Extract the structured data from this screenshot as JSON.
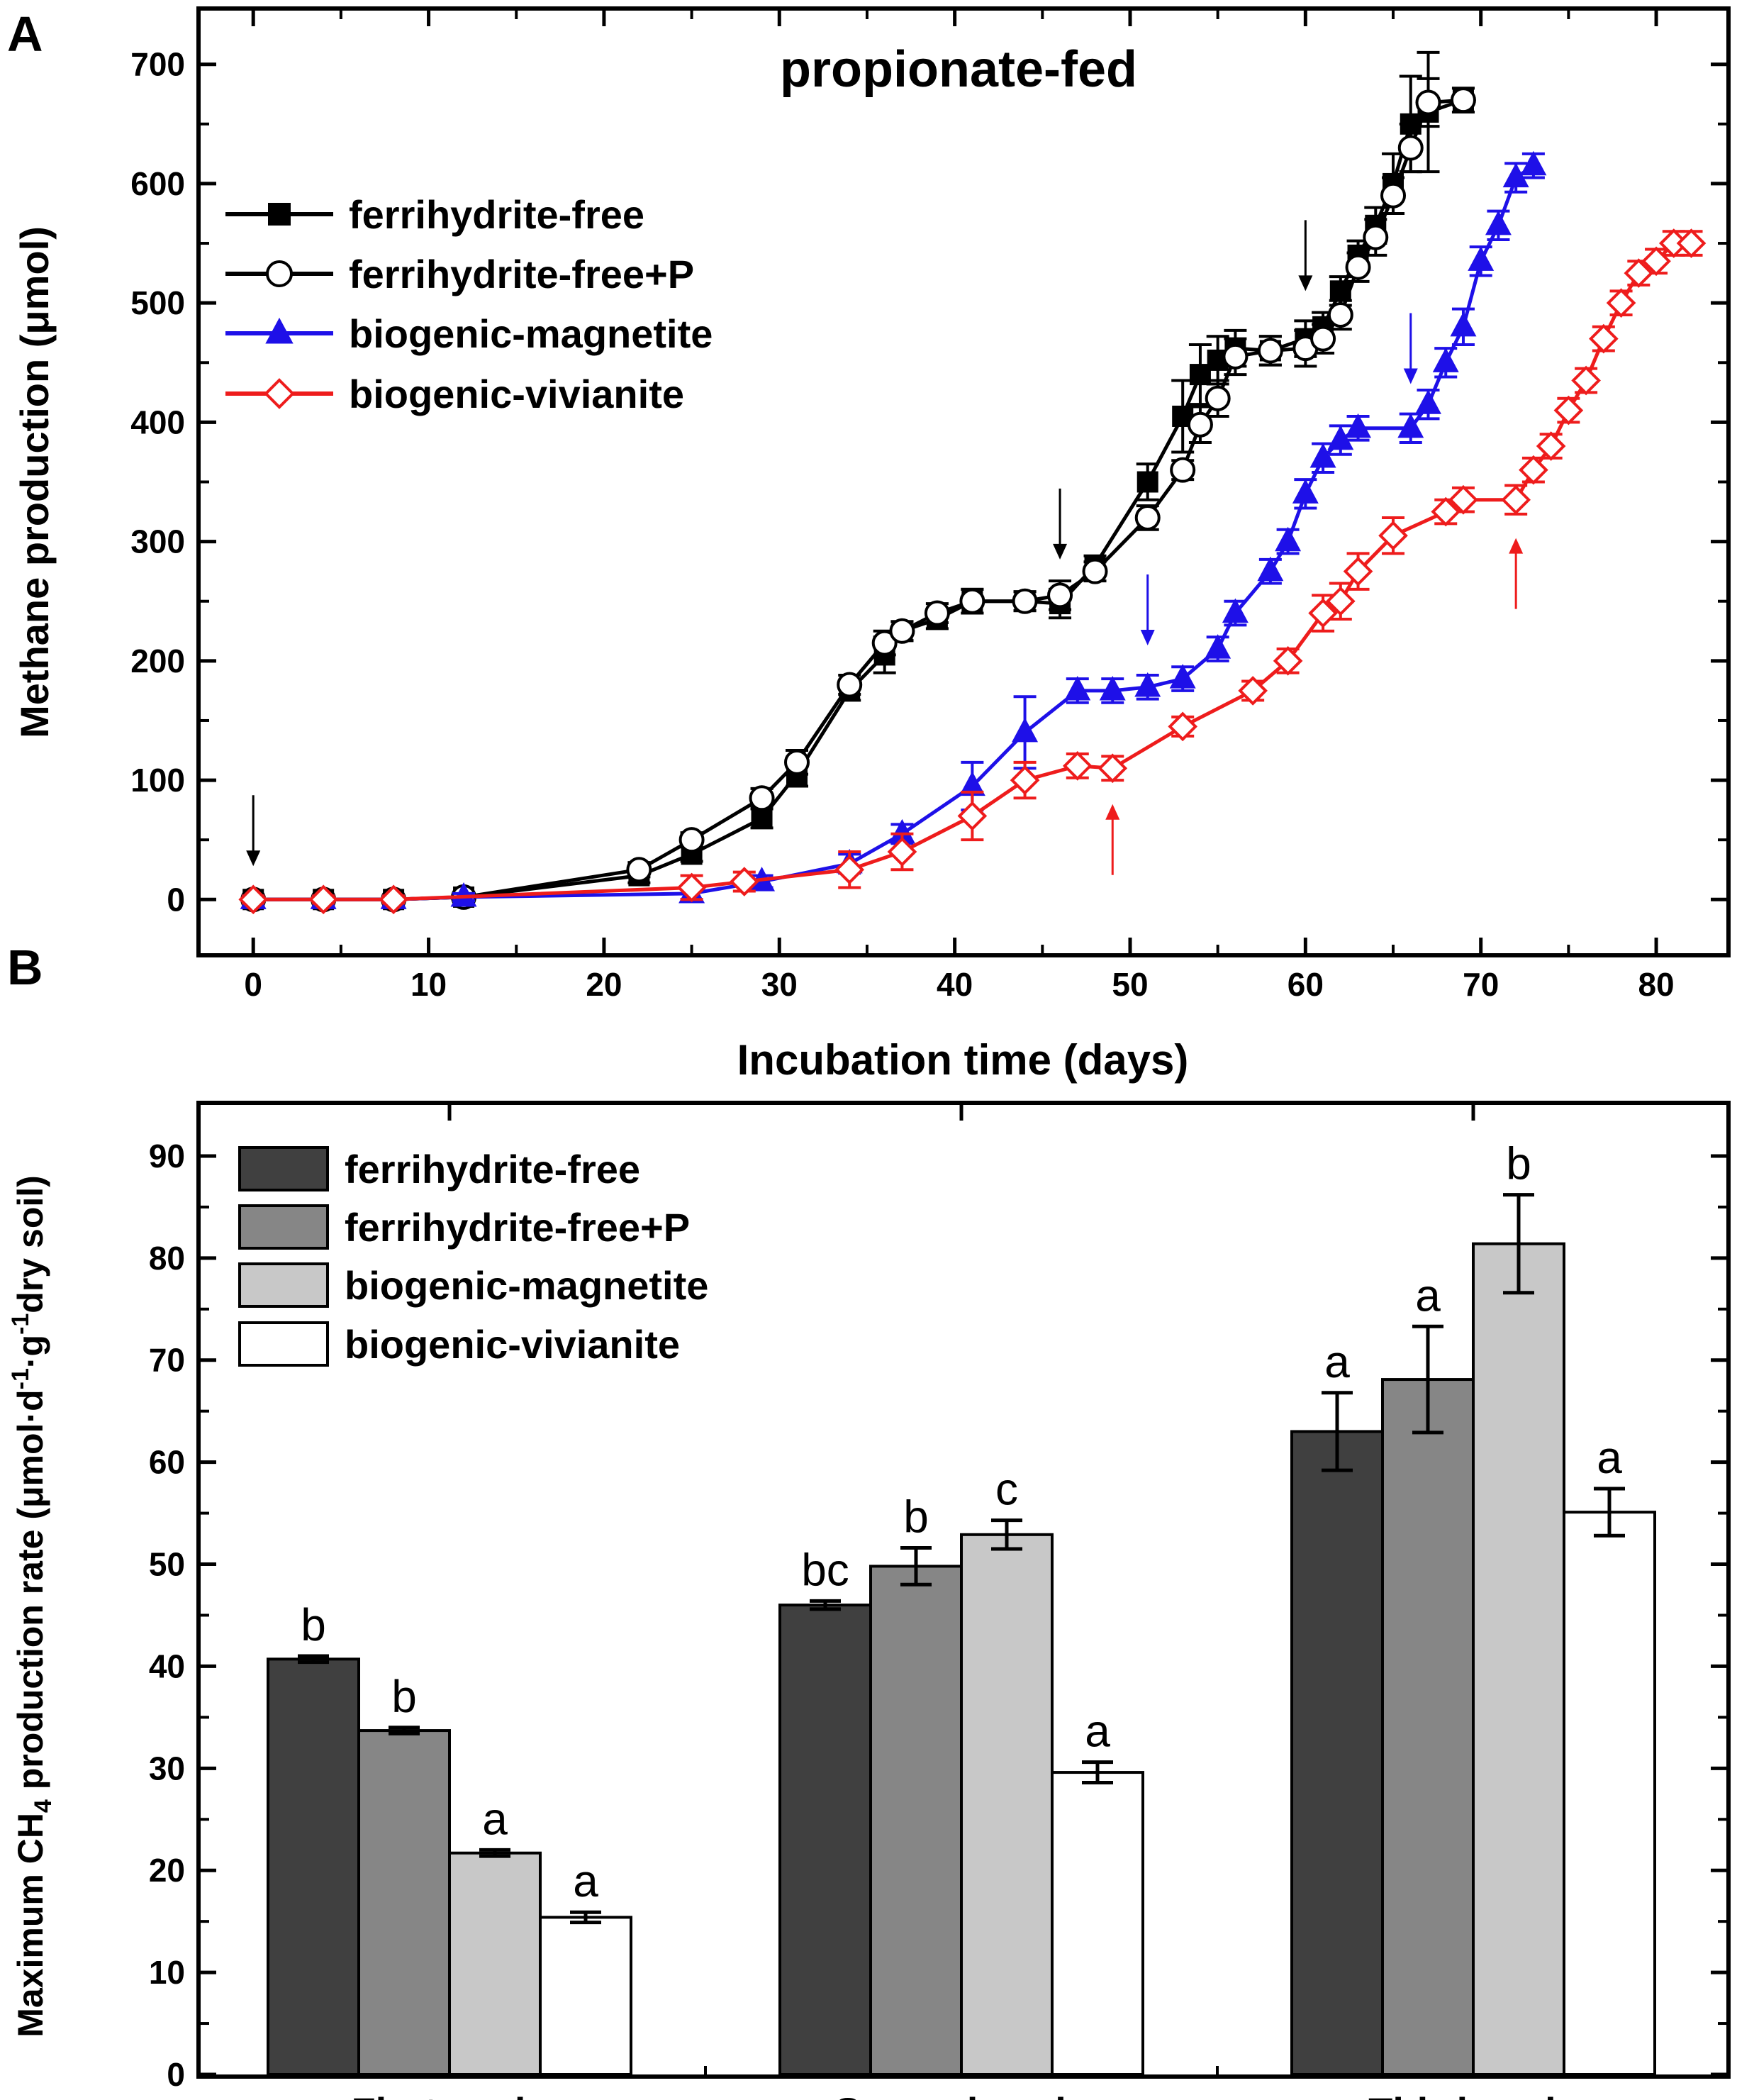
{
  "panel_a": {
    "label": "A",
    "chart_data": {
      "type": "line",
      "title": "propionate-fed",
      "xlabel": "Incubation time (days)",
      "ylabel": "Methane production (μmol)",
      "xlim": [
        -3,
        84
      ],
      "ylim": [
        -45,
        745
      ],
      "xticks": [
        "0",
        "10",
        "20",
        "30",
        "40",
        "50",
        "60",
        "70",
        "80"
      ],
      "yticks": [
        "0",
        "100",
        "200",
        "300",
        "400",
        "500",
        "600",
        "700"
      ],
      "legend_position": "upper-left",
      "series": [
        {
          "name": "ferrihydrite-free",
          "color": "#000000",
          "marker": "square-filled",
          "x": [
            0,
            4,
            8,
            12,
            22,
            25,
            29,
            31,
            34,
            36,
            37,
            39,
            41,
            44,
            46,
            48,
            51,
            53,
            54,
            55,
            56,
            58,
            60,
            61,
            62,
            63,
            64,
            65,
            66,
            67,
            69
          ],
          "y": [
            0,
            0,
            0,
            2,
            20,
            38,
            68,
            105,
            175,
            205,
            225,
            235,
            250,
            250,
            248,
            280,
            350,
            405,
            440,
            452,
            462,
            460,
            470,
            480,
            510,
            540,
            565,
            600,
            650,
            660,
            670
          ],
          "err": [
            3,
            3,
            3,
            3,
            6,
            6,
            8,
            10,
            8,
            15,
            8,
            8,
            10,
            8,
            12,
            8,
            15,
            30,
            25,
            20,
            15,
            12,
            15,
            12,
            12,
            12,
            15,
            25,
            40,
            50,
            10
          ]
        },
        {
          "name": "ferrihydrite-free+P",
          "color": "#000000",
          "marker": "circle-open",
          "x": [
            0,
            4,
            8,
            12,
            22,
            25,
            29,
            31,
            34,
            36,
            37,
            39,
            41,
            44,
            46,
            48,
            51,
            53,
            54,
            55,
            56,
            58,
            60,
            61,
            62,
            63,
            64,
            65,
            66,
            67,
            69
          ],
          "y": [
            0,
            0,
            0,
            2,
            25,
            50,
            85,
            115,
            180,
            215,
            225,
            240,
            250,
            250,
            255,
            275,
            320,
            360,
            398,
            420,
            455,
            460,
            462,
            470,
            490,
            530,
            555,
            590,
            630,
            668,
            670
          ],
          "err": [
            3,
            3,
            3,
            3,
            6,
            6,
            8,
            10,
            8,
            10,
            8,
            8,
            10,
            8,
            12,
            8,
            10,
            8,
            15,
            15,
            15,
            12,
            15,
            12,
            12,
            12,
            15,
            15,
            20,
            20,
            10
          ]
        },
        {
          "name": "biogenic-magnetite",
          "color": "#1e10e8",
          "marker": "triangle-filled",
          "x": [
            0,
            4,
            8,
            12,
            25,
            29,
            34,
            37,
            41,
            44,
            47,
            49,
            51,
            53,
            55,
            56,
            58,
            59,
            60,
            61,
            62,
            63,
            66,
            67,
            68,
            69,
            70,
            71,
            72,
            73
          ],
          "y": [
            0,
            0,
            0,
            2,
            5,
            15,
            30,
            55,
            95,
            140,
            175,
            175,
            178,
            185,
            210,
            240,
            275,
            300,
            340,
            370,
            385,
            395,
            395,
            415,
            450,
            480,
            535,
            565,
            605,
            615
          ],
          "err": [
            3,
            3,
            3,
            3,
            5,
            5,
            8,
            8,
            20,
            30,
            10,
            10,
            10,
            10,
            10,
            10,
            10,
            10,
            12,
            12,
            12,
            10,
            12,
            12,
            12,
            15,
            12,
            12,
            12,
            10
          ]
        },
        {
          "name": "biogenic-vivianite",
          "color": "#ee1c1c",
          "marker": "diamond-open",
          "x": [
            0,
            4,
            8,
            25,
            28,
            34,
            37,
            41,
            44,
            47,
            49,
            53,
            57,
            59,
            61,
            62,
            63,
            65,
            68,
            69,
            72,
            73,
            74,
            75,
            76,
            77,
            78,
            79,
            80,
            81,
            82
          ],
          "y": [
            0,
            0,
            0,
            10,
            15,
            25,
            40,
            70,
            100,
            112,
            110,
            145,
            175,
            200,
            240,
            250,
            275,
            305,
            325,
            335,
            335,
            360,
            380,
            410,
            435,
            470,
            500,
            525,
            535,
            550,
            550
          ],
          "err": [
            3,
            3,
            3,
            10,
            8,
            15,
            15,
            20,
            15,
            10,
            10,
            8,
            8,
            10,
            15,
            15,
            15,
            15,
            10,
            10,
            12,
            10,
            10,
            10,
            10,
            10,
            10,
            10,
            10,
            10,
            10
          ]
        }
      ],
      "annotations": [
        {
          "type": "arrow-down",
          "x": 0,
          "color": "#000000"
        },
        {
          "type": "arrow-down",
          "x": 46,
          "color": "#000000"
        },
        {
          "type": "arrow-down",
          "x": 60,
          "color": "#000000"
        },
        {
          "type": "arrow-down",
          "x": 51,
          "color": "#1e10e8"
        },
        {
          "type": "arrow-down",
          "x": 66,
          "color": "#1e10e8"
        },
        {
          "type": "arrow-up",
          "x": 49,
          "color": "#ee1c1c"
        },
        {
          "type": "arrow-up",
          "x": 72,
          "color": "#ee1c1c"
        }
      ]
    }
  },
  "panel_b": {
    "label": "B",
    "chart_data": {
      "type": "bar",
      "title": "",
      "xlabel": "",
      "ylabel_prefix": "Maximum CH",
      "ylabel_sub": "4",
      "ylabel_suffix": " production rate (μmol·d",
      "ylabel_sup1": "-1",
      "ylabel_mid": "·g",
      "ylabel_sup2": "-1",
      "ylabel_end": "dry soil)",
      "ylim": [
        0,
        95
      ],
      "yticks": [
        "0",
        "10",
        "20",
        "30",
        "40",
        "50",
        "60",
        "70",
        "80",
        "90"
      ],
      "categories": [
        "First cycle",
        "Second cycle",
        "Third cycle"
      ],
      "legend_position": "upper-left",
      "series": [
        {
          "name": "ferrihydrite-free",
          "color": "#404040",
          "values": [
            40.7,
            46.0,
            63.0
          ],
          "err": [
            0.3,
            0.4,
            3.8
          ],
          "letters": [
            "b",
            "bc",
            "a"
          ]
        },
        {
          "name": "ferrihydrite-free+P",
          "color": "#868686",
          "values": [
            33.7,
            49.8,
            68.1
          ],
          "err": [
            0.3,
            1.8,
            5.2
          ],
          "letters": [
            "b",
            "b",
            "a"
          ]
        },
        {
          "name": "biogenic-magnetite",
          "color": "#c8c8c8",
          "values": [
            21.7,
            52.9,
            81.4
          ],
          "err": [
            0.3,
            1.4,
            4.8
          ],
          "letters": [
            "a",
            "c",
            "b"
          ]
        },
        {
          "name": "biogenic-vivianite",
          "color": "#ffffff",
          "values": [
            15.4,
            29.6,
            55.1
          ],
          "err": [
            0.5,
            1.0,
            2.3
          ],
          "letters": [
            "a",
            "a",
            "a"
          ]
        }
      ]
    }
  }
}
